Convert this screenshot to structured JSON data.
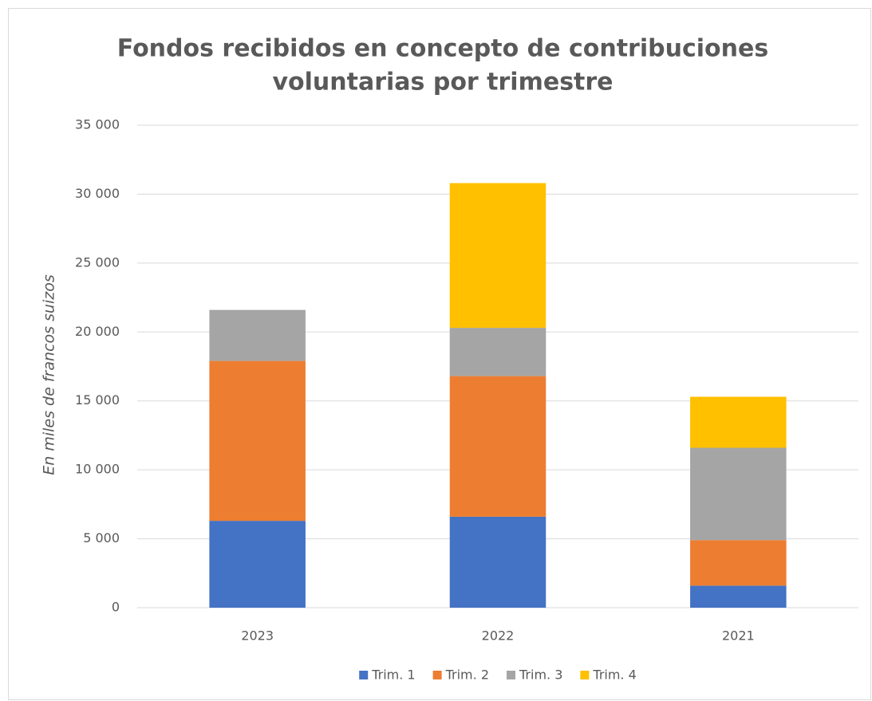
{
  "chart_data": {
    "type": "stacked_bar",
    "title": [
      "Fondos recibidos en concepto de contribuciones",
      "voluntarias por trimestre"
    ],
    "y_label": "En miles de francos suizos",
    "categories": [
      "2023",
      "2022",
      "2021"
    ],
    "series": [
      {
        "name": "Trim. 1",
        "color": "#4472c4",
        "values": [
          6300,
          6600,
          1600
        ]
      },
      {
        "name": "Trim. 2",
        "color": "#ed7d31",
        "values": [
          11600,
          10200,
          3300
        ]
      },
      {
        "name": "Trim. 3",
        "color": "#a5a5a5",
        "values": [
          3700,
          3500,
          6700
        ]
      },
      {
        "name": "Trim. 4",
        "color": "#ffc000",
        "values": [
          0,
          10500,
          3700
        ]
      }
    ],
    "ylim": [
      0,
      35000
    ],
    "yticks": [
      0,
      {
        "value": 5000,
        "label": "5 000"
      },
      {
        "value": 10000,
        "label": "10 000"
      },
      {
        "value": 15000,
        "label": "15 000"
      },
      {
        "value": 20000,
        "label": "20 000"
      },
      {
        "value": 25000,
        "label": "25 000"
      },
      {
        "value": 30000,
        "label": "30 000"
      },
      {
        "value": 35000,
        "label": "35 000"
      }
    ],
    "grid": true,
    "legend": "bottom"
  }
}
